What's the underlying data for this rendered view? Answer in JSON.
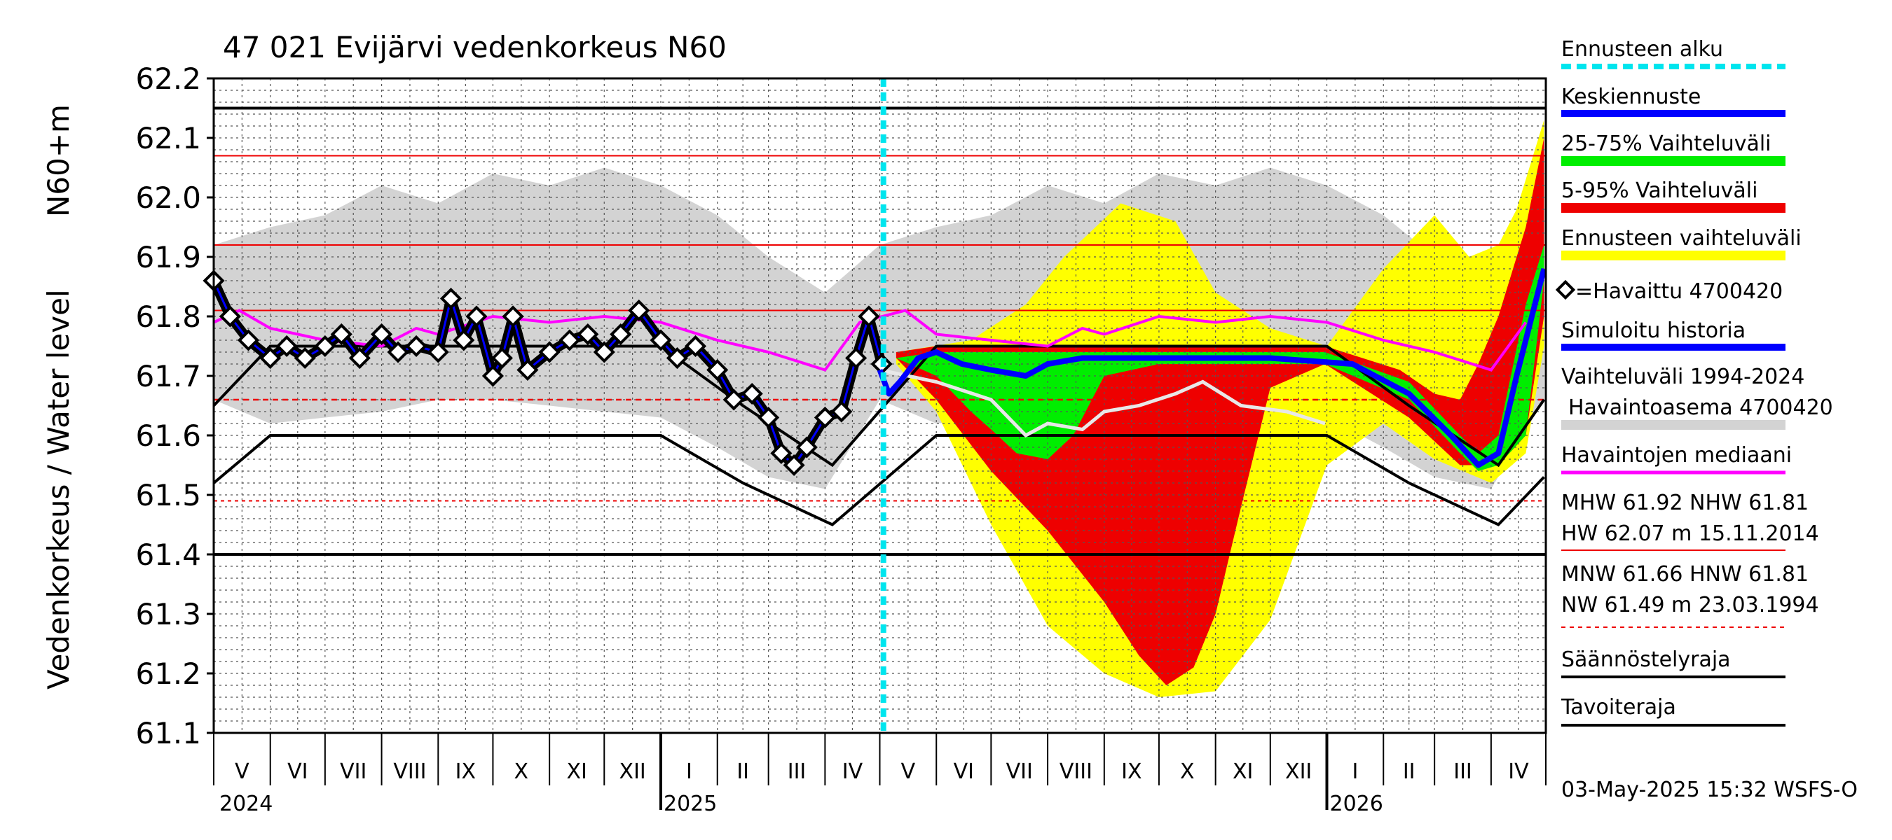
{
  "chart_data": {
    "type": "line",
    "title": "47 021 Evijärvi vedenkorkeus N60",
    "ylabel_left": "Vedenkorkeus / Water level",
    "ylabel_unit": "N60+m",
    "ylim": [
      61.1,
      62.2
    ],
    "yticks": [
      "62.2",
      "62.1",
      "62.0",
      "61.9",
      "61.8",
      "61.7",
      "61.6",
      "61.5",
      "61.4",
      "61.3",
      "61.2",
      "61.1"
    ],
    "months": [
      "V",
      "VI",
      "VII",
      "VIII",
      "IX",
      "X",
      "XI",
      "XII",
      "I",
      "II",
      "III",
      "IV",
      "V",
      "VI",
      "VII",
      "VIII",
      "IX",
      "X",
      "XI",
      "XII",
      "I",
      "II",
      "III",
      "IV"
    ],
    "years": [
      "2024",
      "2025",
      "2026"
    ],
    "x_range": [
      "2024-05-01",
      "2026-04-30"
    ],
    "forecast_start": "2025-05-03",
    "reference_lines": {
      "HW": 62.07,
      "MHW": 61.92,
      "NHW": 61.81,
      "MNW": 61.66,
      "HNW": 61.81,
      "NW": 61.49
    },
    "observed": {
      "name": "Havaittu 4700420",
      "points": [
        [
          "2024-05-01",
          61.86
        ],
        [
          "2024-05-10",
          61.8
        ],
        [
          "2024-05-20",
          61.76
        ],
        [
          "2024-06-01",
          61.73
        ],
        [
          "2024-06-10",
          61.75
        ],
        [
          "2024-06-20",
          61.73
        ],
        [
          "2024-07-01",
          61.75
        ],
        [
          "2024-07-10",
          61.77
        ],
        [
          "2024-07-20",
          61.73
        ],
        [
          "2024-08-01",
          61.77
        ],
        [
          "2024-08-10",
          61.74
        ],
        [
          "2024-08-20",
          61.75
        ],
        [
          "2024-09-01",
          61.74
        ],
        [
          "2024-09-08",
          61.83
        ],
        [
          "2024-09-15",
          61.76
        ],
        [
          "2024-09-22",
          61.8
        ],
        [
          "2024-10-01",
          61.7
        ],
        [
          "2024-10-06",
          61.73
        ],
        [
          "2024-10-12",
          61.8
        ],
        [
          "2024-10-20",
          61.71
        ],
        [
          "2024-11-01",
          61.74
        ],
        [
          "2024-11-12",
          61.76
        ],
        [
          "2024-11-22",
          61.77
        ],
        [
          "2024-12-01",
          61.74
        ],
        [
          "2024-12-10",
          61.77
        ],
        [
          "2024-12-20",
          61.81
        ],
        [
          "2025-01-01",
          61.76
        ],
        [
          "2025-01-10",
          61.73
        ],
        [
          "2025-01-20",
          61.75
        ],
        [
          "2025-02-01",
          61.71
        ],
        [
          "2025-02-10",
          61.66
        ],
        [
          "2025-02-20",
          61.67
        ],
        [
          "2025-03-01",
          61.63
        ],
        [
          "2025-03-08",
          61.57
        ],
        [
          "2025-03-15",
          61.55
        ],
        [
          "2025-03-22",
          61.58
        ],
        [
          "2025-04-01",
          61.63
        ],
        [
          "2025-04-10",
          61.64
        ],
        [
          "2025-04-18",
          61.73
        ],
        [
          "2025-04-25",
          61.8
        ],
        [
          "2025-05-02",
          61.72
        ]
      ]
    },
    "forecast_mean": {
      "name": "Keskiennuste",
      "points": [
        [
          "2025-05-01",
          61.71
        ],
        [
          "2025-05-06",
          61.67
        ],
        [
          "2025-05-12",
          61.69
        ],
        [
          "2025-05-22",
          61.73
        ],
        [
          "2025-06-01",
          61.74
        ],
        [
          "2025-06-15",
          61.72
        ],
        [
          "2025-07-01",
          61.71
        ],
        [
          "2025-07-20",
          61.7
        ],
        [
          "2025-08-01",
          61.72
        ],
        [
          "2025-08-20",
          61.73
        ],
        [
          "2025-10-01",
          61.73
        ],
        [
          "2025-12-01",
          61.73
        ],
        [
          "2026-01-15",
          61.72
        ],
        [
          "2026-02-15",
          61.67
        ],
        [
          "2026-03-10",
          61.6
        ],
        [
          "2026-03-25",
          61.55
        ],
        [
          "2026-04-05",
          61.57
        ],
        [
          "2026-04-15",
          61.7
        ],
        [
          "2026-04-30",
          61.88
        ]
      ]
    },
    "band_25_75": {
      "upper": [
        [
          "2025-05-10",
          61.73
        ],
        [
          "2025-06-01",
          61.74
        ],
        [
          "2025-07-01",
          61.74
        ],
        [
          "2025-08-01",
          61.74
        ],
        [
          "2025-09-01",
          61.74
        ],
        [
          "2025-12-31",
          61.74
        ],
        [
          "2026-02-15",
          61.69
        ],
        [
          "2026-03-15",
          61.6
        ],
        [
          "2026-03-25",
          61.57
        ],
        [
          "2026-04-05",
          61.6
        ],
        [
          "2026-04-20",
          61.82
        ],
        [
          "2026-04-30",
          61.92
        ]
      ],
      "lower": [
        [
          "2025-05-10",
          61.73
        ],
        [
          "2025-06-01",
          61.7
        ],
        [
          "2025-06-20",
          61.64
        ],
        [
          "2025-07-01",
          61.61
        ],
        [
          "2025-07-15",
          61.57
        ],
        [
          "2025-08-01",
          61.56
        ],
        [
          "2025-08-15",
          61.6
        ],
        [
          "2025-09-01",
          61.7
        ],
        [
          "2025-10-01",
          61.72
        ],
        [
          "2025-12-31",
          61.72
        ],
        [
          "2026-02-15",
          61.66
        ],
        [
          "2026-03-15",
          61.57
        ],
        [
          "2026-03-25",
          61.54
        ],
        [
          "2026-04-05",
          61.55
        ],
        [
          "2026-04-20",
          61.6
        ],
        [
          "2026-04-30",
          61.86
        ]
      ]
    },
    "band_5_95": {
      "upper": [
        [
          "2025-05-10",
          61.74
        ],
        [
          "2025-06-01",
          61.75
        ],
        [
          "2025-08-01",
          61.75
        ],
        [
          "2025-09-01",
          61.75
        ],
        [
          "2025-12-31",
          61.75
        ],
        [
          "2026-02-10",
          61.71
        ],
        [
          "2026-03-01",
          61.67
        ],
        [
          "2026-03-15",
          61.66
        ],
        [
          "2026-03-25",
          61.72
        ],
        [
          "2026-04-05",
          61.8
        ],
        [
          "2026-04-20",
          61.95
        ],
        [
          "2026-04-30",
          62.1
        ]
      ],
      "lower": [
        [
          "2025-05-10",
          61.73
        ],
        [
          "2025-06-01",
          61.66
        ],
        [
          "2025-07-01",
          61.54
        ],
        [
          "2025-08-01",
          61.44
        ],
        [
          "2025-09-01",
          61.32
        ],
        [
          "2025-09-20",
          61.23
        ],
        [
          "2025-10-05",
          61.18
        ],
        [
          "2025-10-20",
          61.21
        ],
        [
          "2025-11-01",
          61.3
        ],
        [
          "2025-11-15",
          61.48
        ],
        [
          "2025-12-01",
          61.68
        ],
        [
          "2025-12-31",
          61.72
        ],
        [
          "2026-02-15",
          61.63
        ],
        [
          "2026-03-15",
          61.55
        ],
        [
          "2026-04-05",
          61.55
        ],
        [
          "2026-04-20",
          61.6
        ],
        [
          "2026-04-30",
          61.8
        ]
      ]
    },
    "band_forecast_range": {
      "upper": [
        [
          "2025-05-10",
          61.74
        ],
        [
          "2025-06-20",
          61.76
        ],
        [
          "2025-07-20",
          61.82
        ],
        [
          "2025-08-10",
          61.9
        ],
        [
          "2025-09-10",
          61.99
        ],
        [
          "2025-10-10",
          61.96
        ],
        [
          "2025-11-01",
          61.84
        ],
        [
          "2025-12-01",
          61.78
        ],
        [
          "2026-01-01",
          61.75
        ],
        [
          "2026-02-01",
          61.88
        ],
        [
          "2026-03-01",
          61.97
        ],
        [
          "2026-03-20",
          61.9
        ],
        [
          "2026-04-05",
          61.92
        ],
        [
          "2026-04-15",
          61.98
        ],
        [
          "2026-04-30",
          62.13
        ]
      ],
      "lower": [
        [
          "2025-05-10",
          61.72
        ],
        [
          "2025-06-01",
          61.64
        ],
        [
          "2025-07-01",
          61.45
        ],
        [
          "2025-08-01",
          61.28
        ],
        [
          "2025-09-01",
          61.2
        ],
        [
          "2025-10-01",
          61.16
        ],
        [
          "2025-11-01",
          61.17
        ],
        [
          "2025-12-01",
          61.29
        ],
        [
          "2026-01-01",
          61.55
        ],
        [
          "2026-02-01",
          61.62
        ],
        [
          "2026-03-01",
          61.56
        ],
        [
          "2026-04-01",
          61.52
        ],
        [
          "2026-04-20",
          61.57
        ],
        [
          "2026-04-30",
          61.75
        ]
      ]
    },
    "historic_range_1994_2024": {
      "upper": [
        [
          "2024-05-01",
          61.92
        ],
        [
          "2024-06-01",
          61.95
        ],
        [
          "2024-07-01",
          61.97
        ],
        [
          "2024-08-01",
          62.02
        ],
        [
          "2024-09-01",
          61.99
        ],
        [
          "2024-10-01",
          62.04
        ],
        [
          "2024-11-01",
          62.02
        ],
        [
          "2024-12-01",
          62.05
        ],
        [
          "2025-01-01",
          62.02
        ],
        [
          "2025-02-01",
          61.97
        ],
        [
          "2025-03-01",
          61.9
        ],
        [
          "2025-04-01",
          61.84
        ],
        [
          "2025-05-01",
          61.92
        ],
        [
          "2025-06-01",
          61.95
        ],
        [
          "2025-07-01",
          61.97
        ],
        [
          "2025-08-01",
          62.02
        ],
        [
          "2025-09-01",
          61.99
        ],
        [
          "2025-10-01",
          62.04
        ],
        [
          "2025-11-01",
          62.02
        ],
        [
          "2025-12-01",
          62.05
        ],
        [
          "2026-01-01",
          62.02
        ],
        [
          "2026-02-01",
          61.97
        ],
        [
          "2026-03-01",
          61.9
        ],
        [
          "2026-04-01",
          61.84
        ],
        [
          "2026-04-30",
          61.92
        ]
      ],
      "lower": [
        [
          "2024-05-01",
          61.66
        ],
        [
          "2024-06-01",
          61.62
        ],
        [
          "2024-07-01",
          61.63
        ],
        [
          "2024-08-01",
          61.64
        ],
        [
          "2024-09-01",
          61.66
        ],
        [
          "2024-10-01",
          61.66
        ],
        [
          "2024-11-01",
          61.65
        ],
        [
          "2024-12-01",
          61.64
        ],
        [
          "2025-01-01",
          61.63
        ],
        [
          "2025-02-01",
          61.58
        ],
        [
          "2025-03-01",
          61.53
        ],
        [
          "2025-04-01",
          61.51
        ],
        [
          "2025-05-01",
          61.66
        ],
        [
          "2025-06-01",
          61.62
        ],
        [
          "2025-07-01",
          61.63
        ],
        [
          "2025-08-01",
          61.64
        ],
        [
          "2025-09-01",
          61.66
        ],
        [
          "2025-10-01",
          61.66
        ],
        [
          "2025-11-01",
          61.65
        ],
        [
          "2025-12-01",
          61.64
        ],
        [
          "2026-01-01",
          61.63
        ],
        [
          "2026-02-01",
          61.58
        ],
        [
          "2026-03-01",
          61.53
        ],
        [
          "2026-04-01",
          61.51
        ],
        [
          "2026-04-30",
          61.66
        ]
      ]
    },
    "simulated_history": {
      "name": "Simuloitu historia",
      "points": [
        [
          "2025-05-01",
          61.71
        ],
        [
          "2025-06-01",
          61.69
        ],
        [
          "2025-07-01",
          61.66
        ],
        [
          "2025-07-20",
          61.6
        ],
        [
          "2025-08-01",
          61.62
        ],
        [
          "2025-08-20",
          61.61
        ],
        [
          "2025-09-01",
          61.64
        ],
        [
          "2025-09-20",
          61.65
        ],
        [
          "2025-10-10",
          61.67
        ],
        [
          "2025-10-25",
          61.69
        ],
        [
          "2025-11-15",
          61.65
        ],
        [
          "2025-12-10",
          61.64
        ],
        [
          "2025-12-31",
          61.62
        ]
      ]
    },
    "observed_median": {
      "name": "Havaintojen mediaani",
      "points": [
        [
          "2024-05-01",
          61.79
        ],
        [
          "2024-05-15",
          61.81
        ],
        [
          "2024-06-01",
          61.78
        ],
        [
          "2024-07-01",
          61.76
        ],
        [
          "2024-08-01",
          61.75
        ],
        [
          "2024-08-20",
          61.78
        ],
        [
          "2024-09-01",
          61.77
        ],
        [
          "2024-10-01",
          61.8
        ],
        [
          "2024-11-01",
          61.79
        ],
        [
          "2024-12-01",
          61.8
        ],
        [
          "2025-01-01",
          61.79
        ],
        [
          "2025-02-01",
          61.76
        ],
        [
          "2025-03-01",
          61.74
        ],
        [
          "2025-04-01",
          61.71
        ],
        [
          "2025-04-20",
          61.79
        ],
        [
          "2025-05-15",
          61.81
        ],
        [
          "2025-06-01",
          61.77
        ],
        [
          "2025-07-01",
          61.76
        ],
        [
          "2025-08-01",
          61.75
        ],
        [
          "2025-08-20",
          61.78
        ],
        [
          "2025-09-01",
          61.77
        ],
        [
          "2025-10-01",
          61.8
        ],
        [
          "2025-11-01",
          61.79
        ],
        [
          "2025-12-01",
          61.8
        ],
        [
          "2026-01-01",
          61.79
        ],
        [
          "2026-02-01",
          61.76
        ],
        [
          "2026-03-01",
          61.74
        ],
        [
          "2026-04-01",
          61.71
        ],
        [
          "2026-04-20",
          61.79
        ]
      ]
    },
    "regulation_limits": {
      "name": "Säännöstelyraja",
      "upper_level": 62.15,
      "lower_level": 61.4
    },
    "target_limits": {
      "name": "Tavoiteraja",
      "upper": [
        [
          "2024-05-01",
          61.65
        ],
        [
          "2024-06-01",
          61.75
        ],
        [
          "2025-01-01",
          61.75
        ],
        [
          "2025-02-15",
          61.65
        ],
        [
          "2025-04-05",
          61.55
        ],
        [
          "2025-06-01",
          61.75
        ],
        [
          "2026-01-01",
          61.75
        ],
        [
          "2026-02-15",
          61.65
        ],
        [
          "2026-04-05",
          61.55
        ],
        [
          "2026-04-30",
          61.66
        ]
      ],
      "lower": [
        [
          "2024-05-01",
          61.52
        ],
        [
          "2024-06-01",
          61.6
        ],
        [
          "2025-01-01",
          61.6
        ],
        [
          "2025-02-15",
          61.52
        ],
        [
          "2025-04-05",
          61.45
        ],
        [
          "2025-06-01",
          61.6
        ],
        [
          "2026-01-01",
          61.6
        ],
        [
          "2026-02-15",
          61.52
        ],
        [
          "2026-04-05",
          61.45
        ],
        [
          "2026-04-30",
          61.53
        ]
      ]
    },
    "colors": {
      "forecast_start": "#00e5ee",
      "forecast_mean": "#0000ff",
      "band_25_75": "#00ee00",
      "band_5_95": "#ee0000",
      "band_forecast_range": "#ffff00",
      "observed": "#000000",
      "simulated": "#0000ff",
      "historic_range": "#d3d3d3",
      "median": "#ff00ff",
      "hw_line": "#ee0000",
      "regulation": "#000000"
    }
  },
  "legend": {
    "forecast_start": "Ennusteen alku",
    "forecast_mean": "Keskiennuste",
    "band_25_75": "25-75% Vaihteluväli",
    "band_5_95": "5-95% Vaihteluväli",
    "band_range": "Ennusteen vaihteluväli",
    "observed": "=Havaittu 4700420",
    "simulated": "Simuloitu historia",
    "historic_line1": "Vaihteluväli 1994-2024",
    "historic_line2": "Havaintoasema 4700420",
    "median": "Havaintojen mediaani",
    "stats_high_1": "MHW  61.92 NHW  61.81",
    "stats_high_2": "HW  62.07 m 15.11.2014",
    "stats_low_1": "MNW  61.66 HNW  61.81",
    "stats_low_2": "NW  61.49 m 23.03.1994",
    "regulation": "Säännöstelyraja",
    "target": "Tavoiteraja"
  },
  "footer": "03-May-2025 15:32 WSFS-O"
}
